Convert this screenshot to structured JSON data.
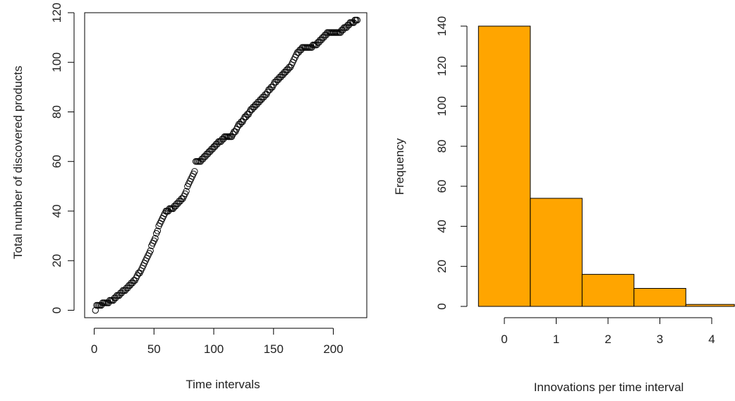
{
  "colors": {
    "frame": "#000000",
    "point_stroke": "#000000",
    "bar_fill": "#FFA500",
    "bar_stroke": "#000000"
  },
  "chart_data": [
    {
      "type": "scatter",
      "xlabel": "Time intervals",
      "ylabel": "Total number of discovered products",
      "xlim": [
        -8,
        228
      ],
      "ylim": [
        -3,
        120
      ],
      "xticks": [
        0,
        50,
        100,
        150,
        200
      ],
      "yticks": [
        0,
        20,
        40,
        60,
        80,
        100,
        120
      ],
      "marker": "open-circle",
      "grid": false,
      "knots": [
        [
          1,
          0
        ],
        [
          2,
          2
        ],
        [
          4,
          2
        ],
        [
          10,
          3
        ],
        [
          15,
          4
        ],
        [
          20,
          6
        ],
        [
          25,
          8
        ],
        [
          30,
          10
        ],
        [
          35,
          13
        ],
        [
          40,
          17
        ],
        [
          45,
          22
        ],
        [
          50,
          28
        ],
        [
          55,
          35
        ],
        [
          60,
          40
        ],
        [
          65,
          41
        ],
        [
          70,
          43
        ],
        [
          75,
          46
        ],
        [
          80,
          52
        ],
        [
          84,
          56
        ],
        [
          85,
          60
        ],
        [
          88,
          60
        ],
        [
          95,
          63
        ],
        [
          100,
          66
        ],
        [
          110,
          70
        ],
        [
          115,
          70
        ],
        [
          120,
          74
        ],
        [
          125,
          77
        ],
        [
          130,
          80
        ],
        [
          135,
          83
        ],
        [
          140,
          85
        ],
        [
          145,
          88
        ],
        [
          150,
          91
        ],
        [
          155,
          94
        ],
        [
          160,
          96
        ],
        [
          165,
          99
        ],
        [
          170,
          104
        ],
        [
          175,
          106
        ],
        [
          180,
          106
        ],
        [
          185,
          107
        ],
        [
          190,
          109
        ],
        [
          195,
          112
        ],
        [
          205,
          112
        ],
        [
          210,
          114
        ],
        [
          215,
          116
        ],
        [
          220,
          117
        ]
      ]
    },
    {
      "type": "bar",
      "xlabel": "Innovations per time interval",
      "ylabel": "Frequency",
      "ylim": [
        0,
        140
      ],
      "yticks": [
        0,
        20,
        40,
        60,
        80,
        100,
        120,
        140
      ],
      "xticks": [
        0,
        1,
        2,
        3,
        4
      ],
      "bins": [
        {
          "from": -0.5,
          "to": 0.5,
          "value": 140
        },
        {
          "from": 0.5,
          "to": 1.5,
          "value": 54
        },
        {
          "from": 1.5,
          "to": 2.5,
          "value": 16
        },
        {
          "from": 2.5,
          "to": 3.5,
          "value": 9
        },
        {
          "from": 3.5,
          "to": 4.5,
          "value": 1
        }
      ],
      "grid": false
    }
  ]
}
